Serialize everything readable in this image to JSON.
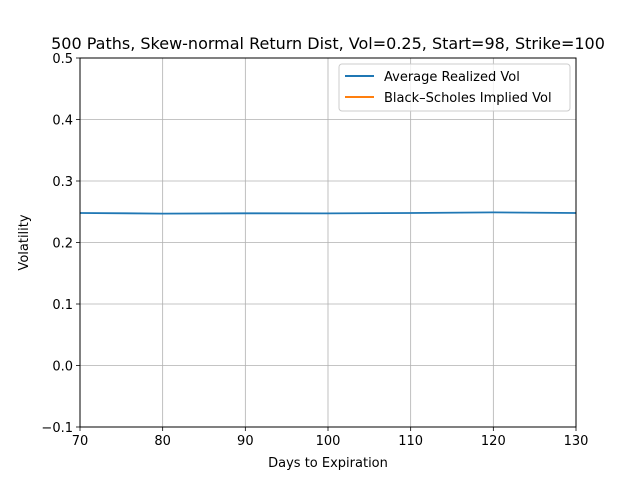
{
  "chart_data": {
    "type": "line",
    "title": "500 Paths, Skew-normal Return Dist, Vol=0.25, Start=98, Strike=100",
    "xlabel": "Days to Expiration",
    "ylabel": "Volatility",
    "xlim": [
      70,
      130
    ],
    "ylim": [
      -0.1,
      0.5
    ],
    "xticks": [
      70,
      80,
      90,
      100,
      110,
      120,
      130
    ],
    "yticks": [
      -0.1,
      0.0,
      0.1,
      0.2,
      0.3,
      0.4,
      0.5
    ],
    "xtick_labels": [
      "70",
      "80",
      "90",
      "100",
      "110",
      "120",
      "130"
    ],
    "ytick_labels": [
      "−0.1",
      "0.0",
      "0.1",
      "0.2",
      "0.3",
      "0.4",
      "0.5"
    ],
    "grid": true,
    "legend_position": "upper right",
    "series": [
      {
        "name": "Average Realized Vol",
        "color": "#1f77b4",
        "x": [
          70,
          80,
          90,
          100,
          110,
          120,
          130
        ],
        "values": [
          0.248,
          0.247,
          0.2475,
          0.2474,
          0.248,
          0.249,
          0.248
        ]
      },
      {
        "name": "Black–Scholes Implied Vol",
        "color": "#ff7f0e",
        "x": [],
        "values": []
      }
    ]
  }
}
